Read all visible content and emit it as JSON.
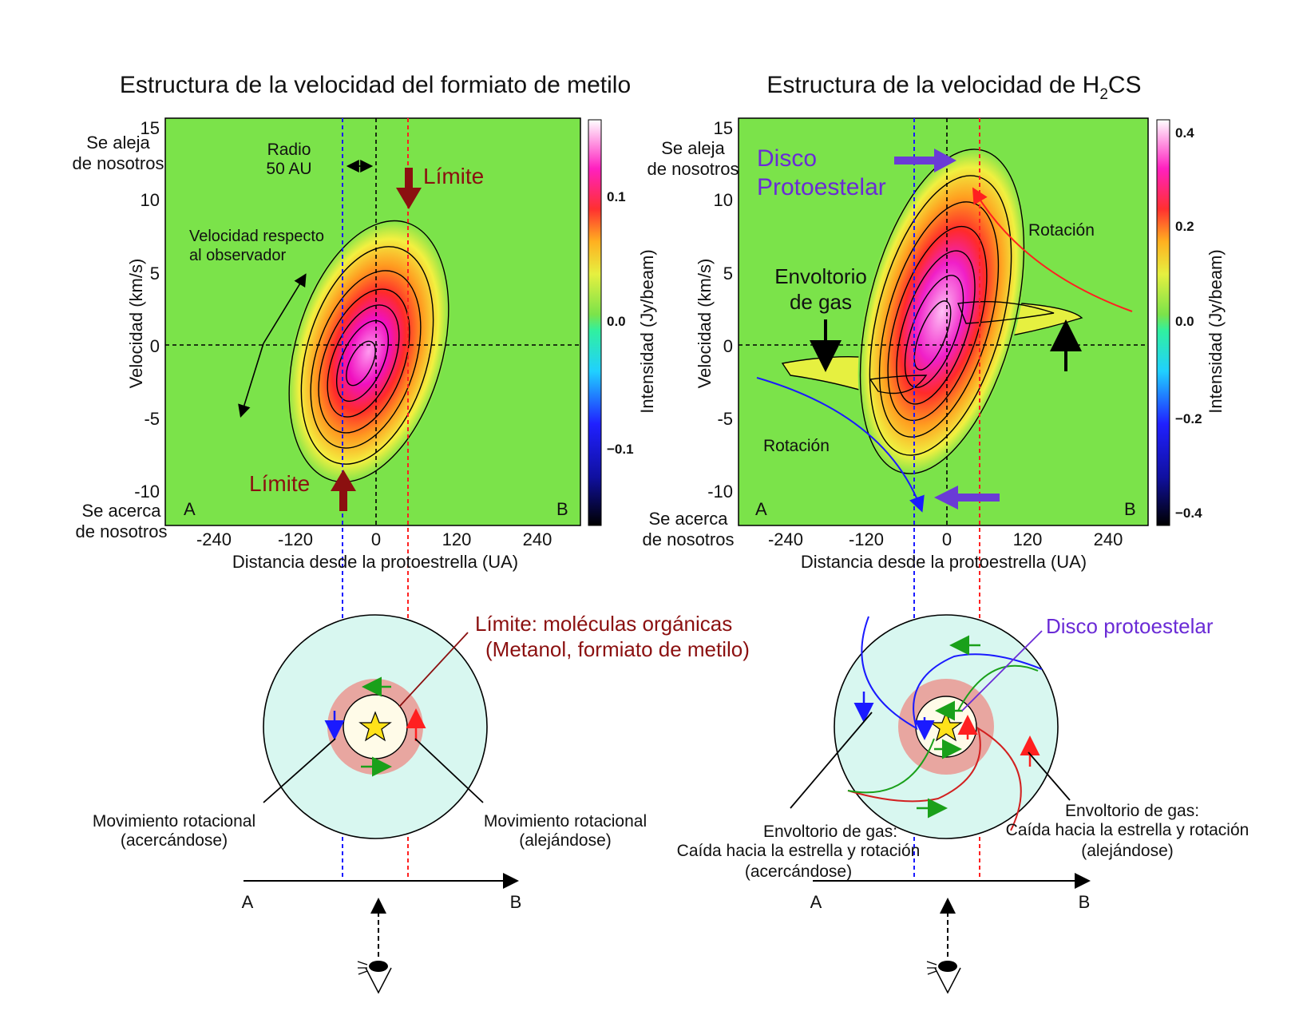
{
  "left_panel": {
    "title": "Estructura de la velocidad del formiato de metilo",
    "x_label": "Distancia desde la protoestrella (UA)",
    "y_label": "Velocidad (km/s)",
    "x_ticks": [
      "-240",
      "-120",
      "0",
      "120",
      "240"
    ],
    "y_ticks": [
      "15",
      "10",
      "5",
      "0",
      "-5",
      "-10"
    ],
    "colorbar_label": "Intensidad (Jy/beam)",
    "colorbar_ticks": [
      "0.1",
      "0.0",
      "−0.1"
    ],
    "receding": [
      "Se aleja",
      "de nosotros"
    ],
    "approaching": [
      "Se acerca",
      "de nosotros"
    ],
    "corner_a": "A",
    "corner_b": "B",
    "radius_label": [
      "Radio",
      "50 AU"
    ],
    "limit_top": "Límite",
    "limit_bottom": "Límite",
    "velocity_note": [
      "Velocidad respecto",
      "al observador"
    ]
  },
  "right_panel": {
    "title_main": "Estructura de la velocidad de H",
    "title_sub": "2",
    "title_end": "CS",
    "x_label": "Distancia desde la protoestrella (UA)",
    "y_label": "Velocidad (km/s)",
    "x_ticks": [
      "-240",
      "-120",
      "0",
      "120",
      "240"
    ],
    "y_ticks": [
      "15",
      "10",
      "5",
      "0",
      "-5",
      "-10"
    ],
    "colorbar_label": "Intensidad (Jy/beam)",
    "colorbar_ticks": [
      "0.4",
      "0.2",
      "0.0",
      "−0.2",
      "−0.4"
    ],
    "receding": [
      "Se aleja",
      "de nosotros"
    ],
    "approaching": [
      "Se acerca",
      "de nosotros"
    ],
    "corner_a": "A",
    "corner_b": "B",
    "disk_label": [
      "Disco",
      "Protoestelar"
    ],
    "envelope_label": [
      "Envoltorio",
      "de gas"
    ],
    "rotation_top": "Rotación",
    "rotation_bottom": "Rotación"
  },
  "left_diagram": {
    "limit_label": [
      "Límite: moléculas orgánicas",
      "(Metanol, formiato de metilo)"
    ],
    "approaching_motion": [
      "Movimiento rotacional",
      "(acercándose)"
    ],
    "receding_motion": [
      "Movimiento rotacional",
      "(alejándose)"
    ],
    "axis_a": "A",
    "axis_b": "B"
  },
  "right_diagram": {
    "disk_label": "Disco protoestelar",
    "envelope_approaching": [
      "Envoltorio de gas:",
      "Caída hacia la estrella y rotación",
      "(acercándose)"
    ],
    "envelope_receding": [
      "Envoltorio de gas:",
      "Caída hacia la estrella y rotación",
      "(alejándose)"
    ],
    "axis_a": "A",
    "axis_b": "B"
  },
  "colors": {
    "background_map": "#7be34a",
    "limit_arrow": "#8b1010",
    "disk_arrow": "#6a3bd6",
    "disk_text": "#6a2bd6",
    "blue_line": "#1a1aff",
    "red_line": "#ff2020",
    "envelope_fill": "#d8f7f0",
    "limit_ring": "#e8a6a0",
    "star": "#ffe21a"
  }
}
